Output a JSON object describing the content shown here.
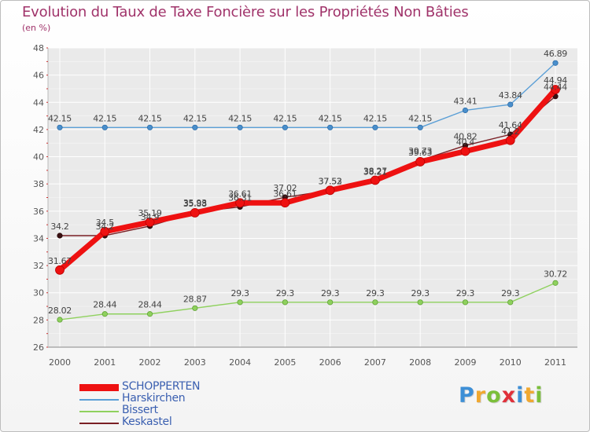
{
  "title": "Evolution du Taux de Taxe Foncière sur les Propriétés Non Bâties",
  "subtitle": "(en %)",
  "logo": {
    "letters": [
      "P",
      "r",
      "o",
      "x",
      "i",
      "t",
      "i"
    ],
    "colors": [
      "#3d8fd6",
      "#f0a830",
      "#7bbf3a",
      "#e0303a",
      "#3d8fd6",
      "#f0a830",
      "#7bbf3a"
    ]
  },
  "chart_data": {
    "type": "line",
    "title": "Evolution du Taux de Taxe Foncière sur les Propriétés Non Bâties",
    "ylabel": "(en %)",
    "xlabel": "",
    "x": [
      "2000",
      "2001",
      "2002",
      "2003",
      "2004",
      "2005",
      "2006",
      "2007",
      "2008",
      "2009",
      "2010",
      "2011"
    ],
    "ylim": [
      26,
      48
    ],
    "yticks": [
      "26",
      "28",
      "30",
      "32",
      "34",
      "36",
      "38",
      "40",
      "42",
      "44",
      "46",
      "48"
    ],
    "grid": true,
    "legend_position": "bottom-left",
    "series": [
      {
        "name": "Harskirchen",
        "color": "#5b9fd6",
        "values": [
          42.15,
          42.15,
          42.15,
          42.15,
          42.15,
          42.15,
          42.15,
          42.15,
          42.15,
          43.41,
          43.84,
          46.89
        ],
        "labels": [
          "42.15",
          "42.15",
          "42.15",
          "42.15",
          "42.15",
          "42.15",
          "42.15",
          "42.15",
          "42.15",
          "43.41",
          "43.84",
          "46.89"
        ]
      },
      {
        "name": "Bissert",
        "color": "#8fd15e",
        "values": [
          28.02,
          28.44,
          28.44,
          28.87,
          29.3,
          29.3,
          29.3,
          29.3,
          29.3,
          29.3,
          29.3,
          30.72
        ],
        "labels": [
          "28.02",
          "28.44",
          "28.44",
          "28.87",
          "29.3",
          "29.3",
          "29.3",
          "29.3",
          "29.3",
          "29.3",
          "29.3",
          "30.72"
        ]
      },
      {
        "name": "Keskastel",
        "color": "#7a1f24",
        "values": [
          34.2,
          34.2,
          34.9,
          35.93,
          36.31,
          37.02,
          37.52,
          38.21,
          39.73,
          40.82,
          41.64,
          44.44
        ],
        "labels": [
          "34.2",
          "34.2",
          "34.9",
          "35.93",
          "36.31",
          "37.02",
          "37.52",
          "38.21",
          "39.73",
          "40.82",
          "41.64",
          "44.44"
        ]
      },
      {
        "name": "SCHOPPERTEN",
        "color": "#ee1111",
        "values": [
          31.67,
          34.5,
          35.19,
          35.88,
          36.61,
          36.61,
          37.53,
          38.27,
          39.63,
          40.4,
          41.2,
          44.94
        ],
        "labels": [
          "31.67",
          "34.5",
          "35.19",
          "35.88",
          "36.61",
          "36.61",
          "37.53",
          "38.27",
          "39.63",
          "40.4",
          "41.2",
          "44.94"
        ]
      }
    ],
    "legend": [
      "SCHOPPERTEN",
      "Harskirchen",
      "Bissert",
      "Keskastel"
    ]
  }
}
